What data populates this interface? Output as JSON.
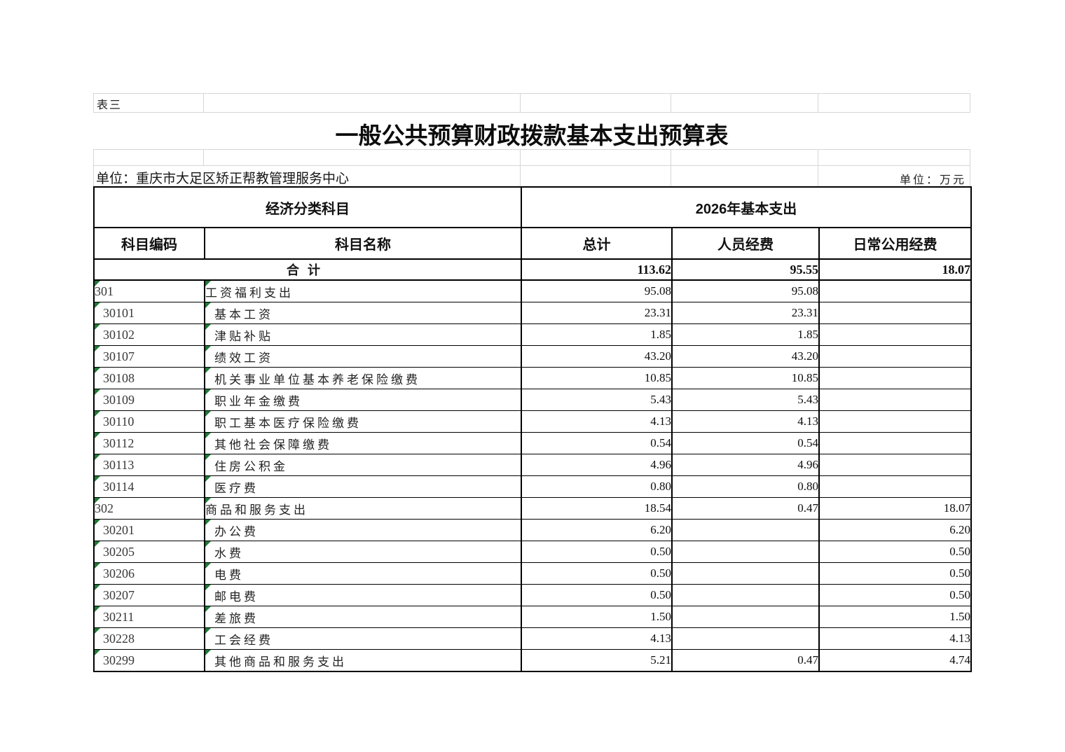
{
  "page": {
    "sheet_label": "表三",
    "title": "一般公共预算财政拨款基本支出预算表",
    "unit_name": "单位：重庆市大足区矫正帮教管理服务中心",
    "unit_scale": "单位：万元"
  },
  "table": {
    "group_headers": {
      "left": "经济分类科目",
      "right": "2026年基本支出"
    },
    "columns": [
      "科目编码",
      "科目名称",
      "总计",
      "人员经费",
      "日常公用经费"
    ],
    "total_row": {
      "label": "合计",
      "total": "113.62",
      "personnel": "95.55",
      "daily": "18.07"
    },
    "rows": [
      {
        "code": "301",
        "name": "工资福利支出",
        "total": "95.08",
        "personnel": "95.08",
        "daily": ""
      },
      {
        "code": "30101",
        "name": "基本工资",
        "total": "23.31",
        "personnel": "23.31",
        "daily": ""
      },
      {
        "code": "30102",
        "name": "津贴补贴",
        "total": "1.85",
        "personnel": "1.85",
        "daily": ""
      },
      {
        "code": "30107",
        "name": "绩效工资",
        "total": "43.20",
        "personnel": "43.20",
        "daily": ""
      },
      {
        "code": "30108",
        "name": "机关事业单位基本养老保险缴费",
        "total": "10.85",
        "personnel": "10.85",
        "daily": ""
      },
      {
        "code": "30109",
        "name": "职业年金缴费",
        "total": "5.43",
        "personnel": "5.43",
        "daily": ""
      },
      {
        "code": "30110",
        "name": "职工基本医疗保险缴费",
        "total": "4.13",
        "personnel": "4.13",
        "daily": ""
      },
      {
        "code": "30112",
        "name": "其他社会保障缴费",
        "total": "0.54",
        "personnel": "0.54",
        "daily": ""
      },
      {
        "code": "30113",
        "name": "住房公积金",
        "total": "4.96",
        "personnel": "4.96",
        "daily": ""
      },
      {
        "code": "30114",
        "name": "医疗费",
        "total": "0.80",
        "personnel": "0.80",
        "daily": ""
      },
      {
        "code": "302",
        "name": "商品和服务支出",
        "total": "18.54",
        "personnel": "0.47",
        "daily": "18.07"
      },
      {
        "code": "30201",
        "name": "办公费",
        "total": "6.20",
        "personnel": "",
        "daily": "6.20"
      },
      {
        "code": "30205",
        "name": "水费",
        "total": "0.50",
        "personnel": "",
        "daily": "0.50"
      },
      {
        "code": "30206",
        "name": "电费",
        "total": "0.50",
        "personnel": "",
        "daily": "0.50"
      },
      {
        "code": "30207",
        "name": "邮电费",
        "total": "0.50",
        "personnel": "",
        "daily": "0.50"
      },
      {
        "code": "30211",
        "name": "差旅费",
        "total": "1.50",
        "personnel": "",
        "daily": "1.50"
      },
      {
        "code": "30228",
        "name": "工会经费",
        "total": "4.13",
        "personnel": "",
        "daily": "4.13"
      },
      {
        "code": "30299",
        "name": "其他商品和服务支出",
        "total": "5.21",
        "personnel": "0.47",
        "daily": "4.74"
      }
    ]
  },
  "colors": {
    "error_triangle_green": "#1e7a35",
    "faint_gridline": "#d6d6d6",
    "table_border": "#000000"
  }
}
